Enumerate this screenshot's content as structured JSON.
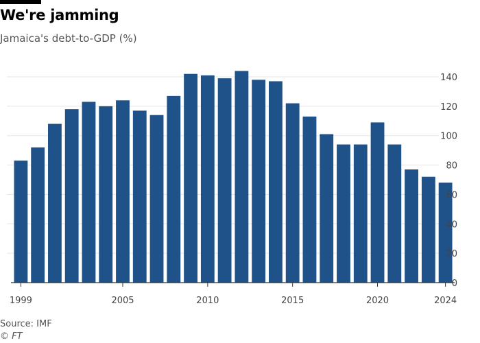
{
  "header": {
    "title": "We're jamming",
    "subtitle": "Jamaica's debt-to-GDP (%)"
  },
  "footer": {
    "source": "Source: IMF",
    "credit": "© FT"
  },
  "colors": {
    "bar": "#1f5289",
    "grid": "#e5e5e5",
    "axis": "#333333",
    "tick_text": "#444444"
  },
  "chart_data": {
    "type": "bar",
    "title": "We're jamming",
    "subtitle": "Jamaica's debt-to-GDP (%)",
    "xlabel": "",
    "ylabel": "",
    "y_axis_position": "right",
    "grid": true,
    "ylim": [
      0,
      150
    ],
    "yticks": [
      0,
      20,
      40,
      60,
      80,
      100,
      120,
      140
    ],
    "x_tick_labels": [
      "1999",
      "2005",
      "2010",
      "2015",
      "2020",
      "2024"
    ],
    "categories": [
      1999,
      2000,
      2001,
      2002,
      2003,
      2004,
      2005,
      2006,
      2007,
      2008,
      2009,
      2010,
      2011,
      2012,
      2013,
      2014,
      2015,
      2016,
      2017,
      2018,
      2019,
      2020,
      2021,
      2022,
      2023,
      2024
    ],
    "values": [
      83,
      92,
      108,
      118,
      123,
      120,
      124,
      117,
      114,
      127,
      142,
      141,
      139,
      144,
      138,
      137,
      122,
      113,
      101,
      94,
      94,
      109,
      94,
      77,
      72,
      68
    ]
  }
}
